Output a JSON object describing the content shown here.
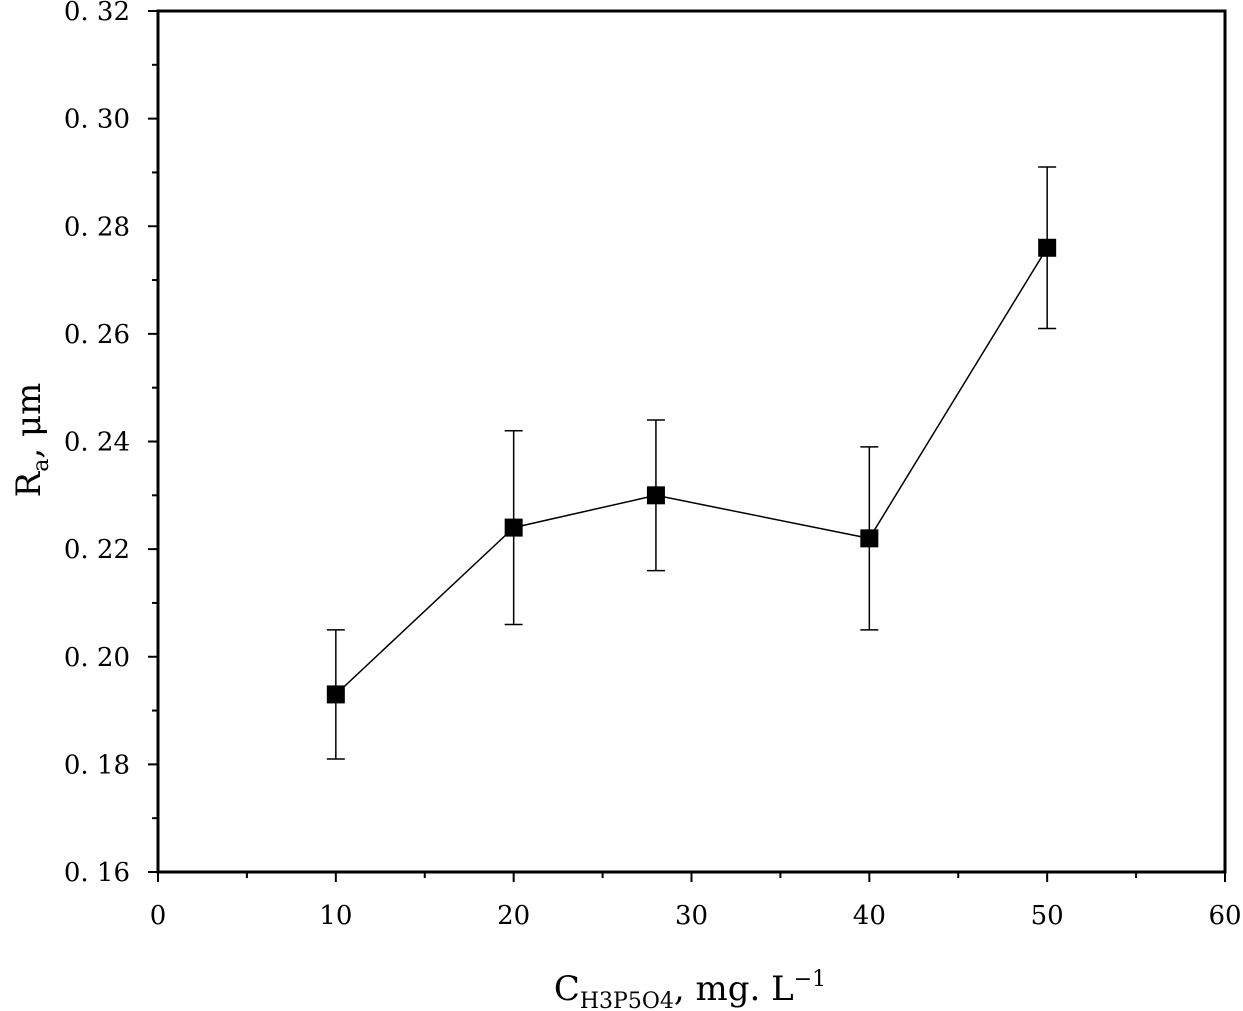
{
  "chart_data": {
    "type": "scatter",
    "connected": true,
    "marker": "square",
    "title": "",
    "xlabel": {
      "main": "C",
      "sub": "H3P5O4",
      "rest": ",  mg. L",
      "sup": "−1"
    },
    "ylabel": {
      "main": "R",
      "sub": "a",
      "rest": ", μm"
    },
    "xlim": [
      0,
      60
    ],
    "ylim": [
      0.16,
      0.32
    ],
    "xticks": [
      0,
      10,
      20,
      30,
      40,
      50,
      60
    ],
    "xtick_labels": [
      "0",
      "10",
      "20",
      "30",
      "40",
      "50",
      "60"
    ],
    "yticks": [
      0.16,
      0.18,
      0.2,
      0.22,
      0.24,
      0.26,
      0.28,
      0.3,
      0.32
    ],
    "ytick_labels": [
      "0. 16",
      "0. 18",
      "0. 20",
      "0. 22",
      "0. 24",
      "0. 26",
      "0. 28",
      "0. 30",
      "0. 32"
    ],
    "series": [
      {
        "x": [
          10,
          20,
          28,
          40,
          50
        ],
        "y": [
          0.193,
          0.224,
          0.23,
          0.222,
          0.276
        ],
        "err_low": [
          0.181,
          0.206,
          0.216,
          0.205,
          0.261
        ],
        "err_high": [
          0.205,
          0.242,
          0.244,
          0.239,
          0.291
        ]
      }
    ],
    "grid": false,
    "colors": {
      "marker": "#000000",
      "line": "#000000"
    }
  }
}
